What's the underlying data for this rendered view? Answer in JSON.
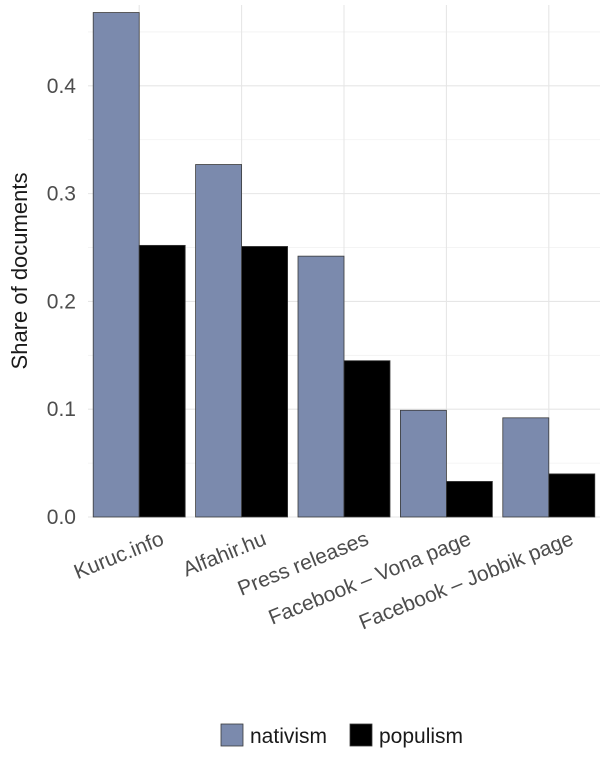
{
  "chart_data": {
    "type": "bar",
    "categories": [
      "Kuruc.info",
      "Alfahir.hu",
      "Press releases",
      "Facebook – Vona page",
      "Facebook – Jobbik page"
    ],
    "series": [
      {
        "name": "nativism",
        "values": [
          0.468,
          0.327,
          0.242,
          0.099,
          0.092
        ],
        "color": "#7b8aad"
      },
      {
        "name": "populism",
        "values": [
          0.252,
          0.251,
          0.145,
          0.033,
          0.04
        ],
        "color": "#000000"
      }
    ],
    "ylabel": "Share of documents",
    "xlabel": "",
    "ylim": [
      0,
      0.475
    ],
    "yticks": [
      0.0,
      0.1,
      0.2,
      0.3,
      0.4
    ],
    "ytick_labels": [
      "0.0",
      "0.1",
      "0.2",
      "0.3",
      "0.4"
    ],
    "grid": true,
    "legend_position": "bottom"
  }
}
